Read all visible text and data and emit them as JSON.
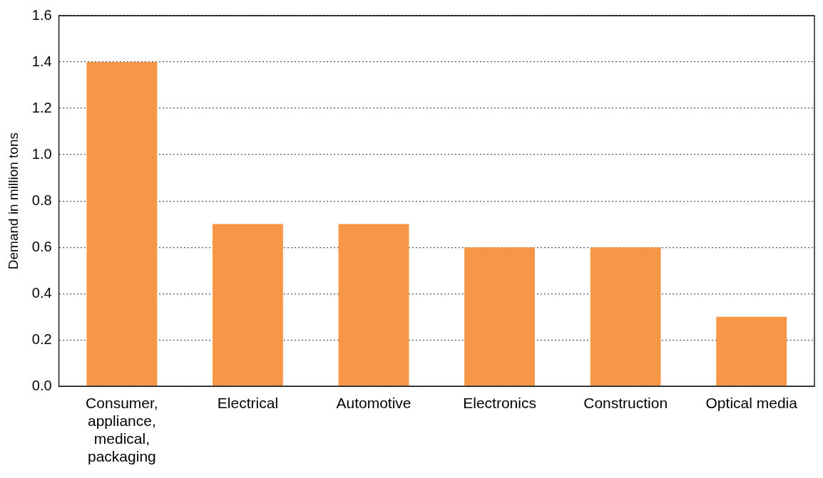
{
  "chart_data": {
    "type": "bar",
    "ylabel": "Demand in million tons",
    "categories": [
      "Consumer, appliance, medical, packaging",
      "Electrical",
      "Automotive",
      "Electronics",
      "Construction",
      "Optical media"
    ],
    "values": [
      1.4,
      0.7,
      0.7,
      0.6,
      0.6,
      0.3
    ],
    "color": "#f79646",
    "ylim": [
      0,
      1.6
    ],
    "yticks": [
      {
        "value": 0,
        "label": "0.0"
      },
      0.2,
      0.4,
      0.6,
      0.8,
      {
        "value": 1,
        "label": "1.0"
      },
      1.2,
      1.4,
      1.6
    ],
    "grid": "y",
    "legend": false
  }
}
